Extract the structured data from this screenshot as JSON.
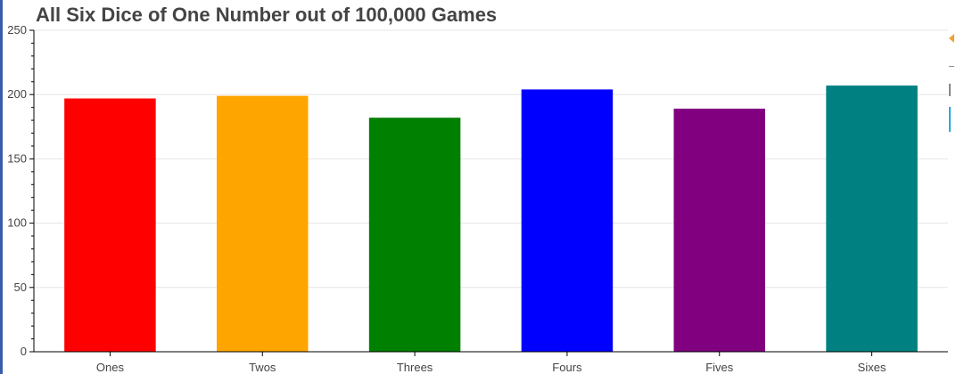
{
  "title": "All Six Dice of One Number out of 100,000 Games",
  "toolbar": {
    "icons": [
      "bokeh-logo-icon",
      "pan-icon",
      "box-zoom-icon",
      "active-tool-indicator"
    ]
  },
  "chart_data": {
    "type": "bar",
    "title": "All Six Dice of One Number out of 100,000 Games",
    "xlabel": "",
    "ylabel": "",
    "categories": [
      "Ones",
      "Twos",
      "Threes",
      "Fours",
      "Fives",
      "Sixes"
    ],
    "values": [
      197,
      199,
      182,
      204,
      189,
      207
    ],
    "colors": [
      "#ff0000",
      "#ffa500",
      "#008000",
      "#0000ff",
      "#800080",
      "#008080"
    ],
    "ylim": [
      0,
      250
    ],
    "yticks": [
      0,
      50,
      100,
      150,
      200,
      250
    ],
    "ytick_labels": [
      "0",
      "50",
      "100",
      "150",
      "200",
      "250"
    ],
    "grid": true,
    "legend": "none"
  }
}
